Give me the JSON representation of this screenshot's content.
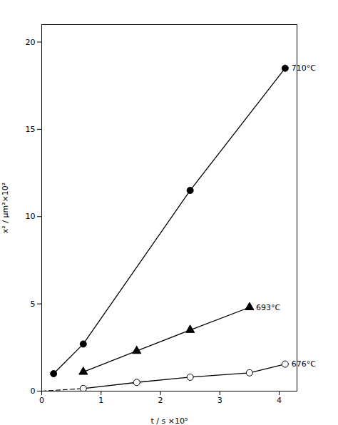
{
  "chart_data": {
    "type": "line",
    "xlabel": "t / s ×10⁵",
    "ylabel": "x² / μm²×10²",
    "xlim": [
      0,
      4.3
    ],
    "ylim": [
      0,
      21
    ],
    "xticks": [
      0,
      1,
      2,
      3,
      4
    ],
    "yticks": [
      0,
      5,
      10,
      15,
      20
    ],
    "grid": false,
    "series": [
      {
        "name": "710°C",
        "color": "black",
        "marker": "circle",
        "line_style": "solid",
        "x": [
          0.2,
          0.7,
          2.5,
          4.1
        ],
        "values": [
          1.0,
          2.7,
          11.5,
          18.5
        ]
      },
      {
        "name": "693°C",
        "color": "black",
        "marker": "triangle",
        "line_style": "solid",
        "x": [
          0.7,
          1.6,
          2.5,
          3.5
        ],
        "values": [
          1.1,
          2.3,
          3.5,
          4.8
        ]
      },
      {
        "name": "676°C",
        "color": "black",
        "marker": "open_circle",
        "line_style": "solid",
        "x": [
          0.7,
          1.6,
          2.5,
          3.5,
          4.1
        ],
        "values": [
          0.15,
          0.5,
          0.8,
          1.05,
          1.55
        ],
        "extension": {
          "x": [
            0.0,
            0.7
          ],
          "values": [
            0.0,
            0.15
          ],
          "line_style": "dashed",
          "color": "black"
        }
      }
    ]
  }
}
